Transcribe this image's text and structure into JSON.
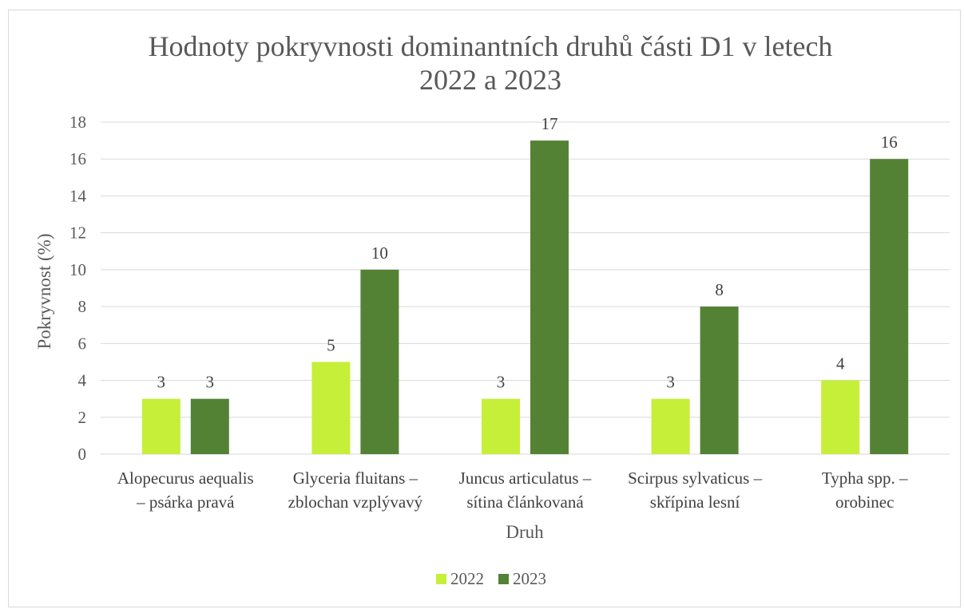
{
  "chart_data": {
    "type": "bar",
    "title": [
      "Hodnoty pokryvnosti dominantních druhů části D1 v letech",
      "2022 a 2023"
    ],
    "xlabel": "Druh",
    "ylabel": "Pokryvnost (%)",
    "ylim": [
      0,
      18
    ],
    "yticks": [
      0,
      2,
      4,
      6,
      8,
      10,
      12,
      14,
      16,
      18
    ],
    "grid": true,
    "legend_position": "bottom",
    "categories": [
      [
        "Alopecurus aequalis",
        "– psárka pravá"
      ],
      [
        "Glyceria fluitans –",
        "zblochan vzplývavý"
      ],
      [
        "Juncus articulatus –",
        "sítina článkovaná"
      ],
      [
        "Scirpus sylvaticus –",
        "skřípina lesní"
      ],
      [
        "Typha spp. –",
        "orobinec"
      ]
    ],
    "series": [
      {
        "name": "2022",
        "color": "#c6ef3a",
        "values": [
          3,
          5,
          3,
          3,
          4
        ]
      },
      {
        "name": "2023",
        "color": "#548235",
        "values": [
          3,
          10,
          17,
          8,
          16
        ]
      }
    ],
    "gridline_color": "#d9d9d9"
  }
}
